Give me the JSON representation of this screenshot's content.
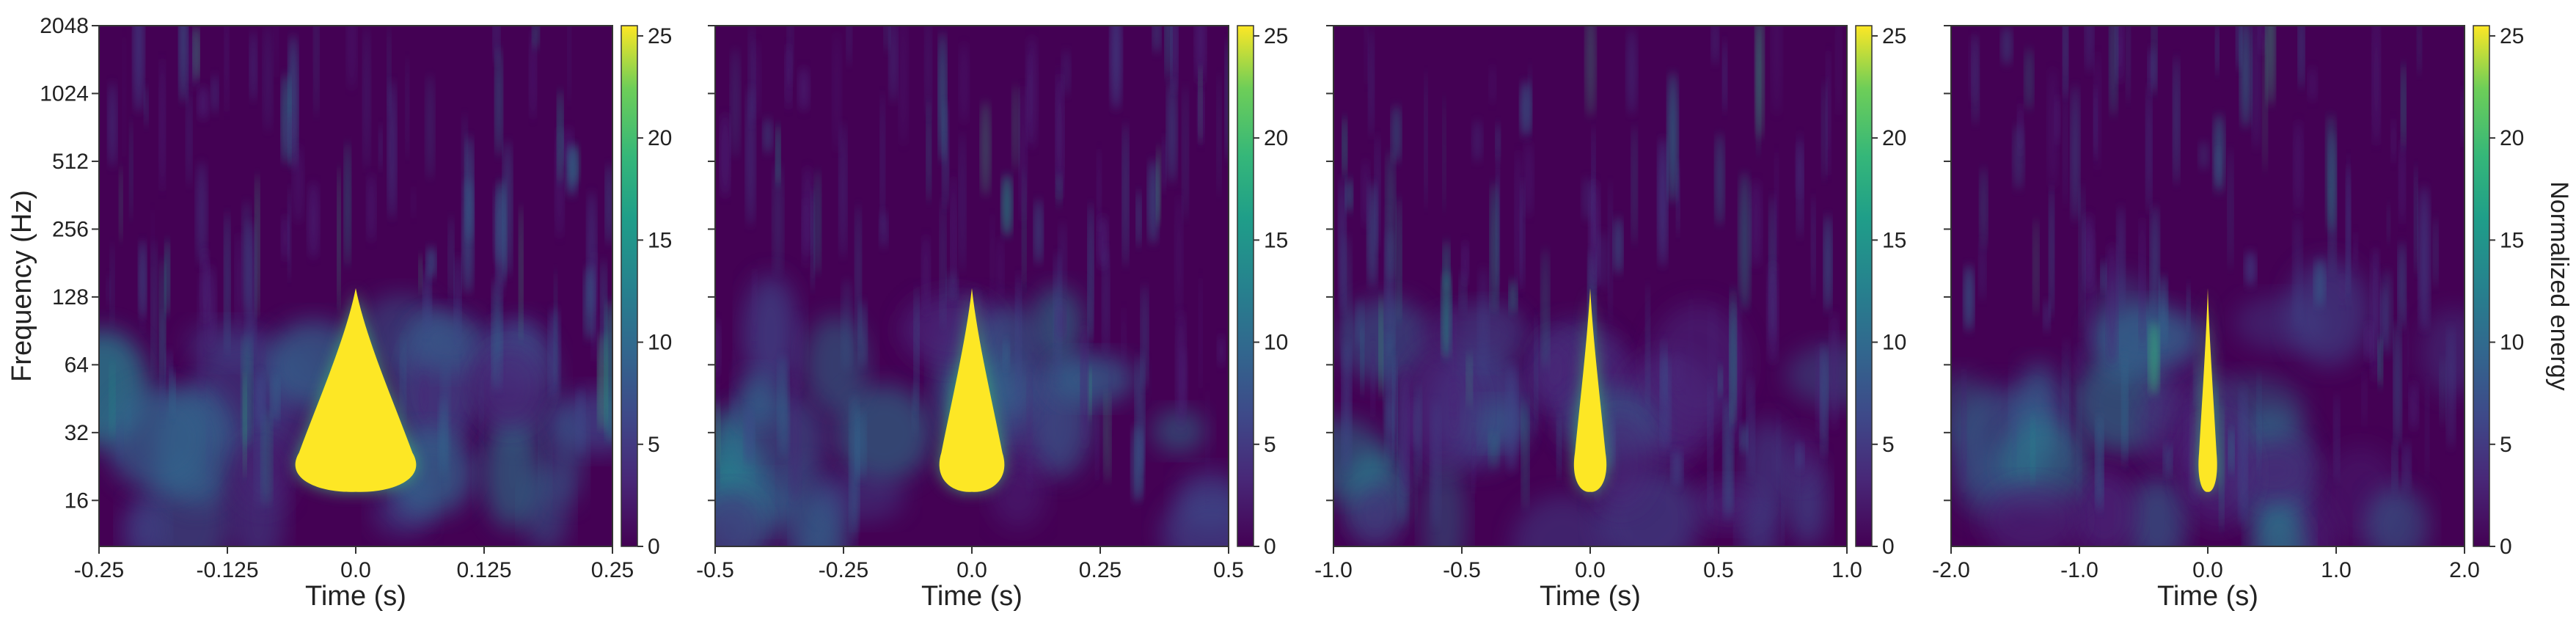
{
  "chart_data": [
    {
      "type": "heatmap",
      "panel": 1,
      "xlabel": "Time (s)",
      "ylabel": "Frequency (Hz)",
      "x_ticks": [
        "-0.25",
        "-0.125",
        "0.0",
        "0.125",
        "0.25"
      ],
      "x_tick_values": [
        -0.25,
        -0.125,
        0.0,
        0.125,
        0.25
      ],
      "xlim": [
        -0.25,
        0.25
      ],
      "y_scale": "log2",
      "y_ticks": [
        "16",
        "32",
        "64",
        "128",
        "256",
        "512",
        "1024",
        "2048"
      ],
      "y_tick_values": [
        16,
        32,
        64,
        128,
        256,
        512,
        1024,
        2048
      ],
      "ylim": [
        10,
        2048
      ],
      "colorbar": {
        "label": "",
        "ticks": [
          "0",
          "5",
          "10",
          "15",
          "20",
          "25"
        ],
        "range": [
          0,
          25.5
        ]
      },
      "blob": {
        "t_center": 0.0,
        "f_low": 18,
        "f_high": 140,
        "half_width_s": 0.065
      }
    },
    {
      "type": "heatmap",
      "panel": 2,
      "xlabel": "Time (s)",
      "ylabel": "",
      "x_ticks": [
        "-0.5",
        "-0.25",
        "0.0",
        "0.25",
        "0.5"
      ],
      "x_tick_values": [
        -0.5,
        -0.25,
        0.0,
        0.25,
        0.5
      ],
      "xlim": [
        -0.5,
        0.5
      ],
      "y_scale": "log2",
      "ylim": [
        10,
        2048
      ],
      "colorbar": {
        "label": "",
        "ticks": [
          "0",
          "5",
          "10",
          "15",
          "20",
          "25"
        ],
        "range": [
          0,
          25.5
        ]
      },
      "blob": {
        "t_center": 0.0,
        "f_low": 18,
        "f_high": 140,
        "half_width_s": 0.07
      }
    },
    {
      "type": "heatmap",
      "panel": 3,
      "xlabel": "Time (s)",
      "ylabel": "",
      "x_ticks": [
        "-1.0",
        "-0.5",
        "0.0",
        "0.5",
        "1.0"
      ],
      "x_tick_values": [
        -1.0,
        -0.5,
        0.0,
        0.5,
        1.0
      ],
      "xlim": [
        -1.0,
        1.0
      ],
      "y_scale": "log2",
      "ylim": [
        10,
        2048
      ],
      "colorbar": {
        "label": "",
        "ticks": [
          "0",
          "5",
          "10",
          "15",
          "20",
          "25"
        ],
        "range": [
          0,
          25.5
        ]
      },
      "blob": {
        "t_center": 0.0,
        "f_low": 18,
        "f_high": 140,
        "half_width_s": 0.07
      }
    },
    {
      "type": "heatmap",
      "panel": 4,
      "xlabel": "Time (s)",
      "ylabel": "",
      "x_ticks": [
        "-2.0",
        "-1.0",
        "0.0",
        "1.0",
        "2.0"
      ],
      "x_tick_values": [
        -2.0,
        -1.0,
        0.0,
        1.0,
        2.0
      ],
      "xlim": [
        -2.0,
        2.0
      ],
      "y_scale": "log2",
      "ylim": [
        10,
        2048
      ],
      "colorbar": {
        "label": "Normalized energy",
        "ticks": [
          "0",
          "5",
          "10",
          "15",
          "20",
          "25"
        ],
        "range": [
          0,
          25.5
        ]
      },
      "blob": {
        "t_center": 0.0,
        "f_low": 18,
        "f_high": 140,
        "half_width_s": 0.08
      }
    }
  ],
  "colors": {
    "background": "#440154",
    "low": "#472d7b",
    "mid": "#21918c",
    "high": "#fde725"
  }
}
